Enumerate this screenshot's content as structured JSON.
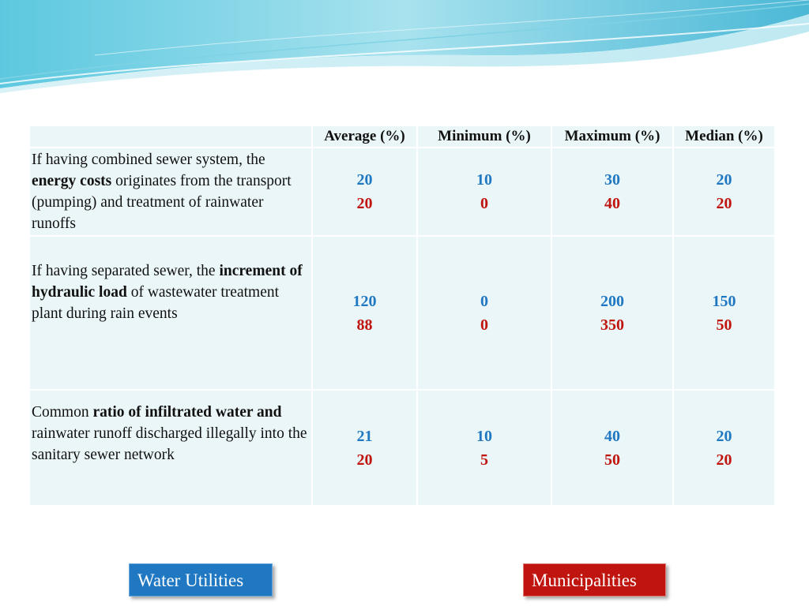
{
  "table": {
    "headers": [
      "",
      "Average (%)",
      "Minimum (%)",
      "Maximum (%)",
      "Median (%)"
    ],
    "rows": [
      {
        "label_parts": [
          {
            "text": "If having combined sewer system, the ",
            "bold": false
          },
          {
            "text": "energy costs",
            "bold": true
          },
          {
            "text": " originates from the transport (pumping) and treatment of rainwater runoffs",
            "bold": false
          }
        ],
        "water_utilities": [
          "20",
          "10",
          "30",
          "20"
        ],
        "municipalities": [
          "20",
          "0",
          "40",
          "20"
        ]
      },
      {
        "label_parts": [
          {
            "text": "If having separated sewer, the ",
            "bold": false
          },
          {
            "text": "increment of hydraulic load",
            "bold": true
          },
          {
            "text": " of wastewater treatment plant during rain events",
            "bold": false
          }
        ],
        "water_utilities": [
          "120",
          "0",
          "200",
          "150"
        ],
        "municipalities": [
          "88",
          "0",
          "350",
          "50"
        ]
      },
      {
        "label_parts": [
          {
            "text": "Common ",
            "bold": false
          },
          {
            "text": "ratio of infiltrated water and",
            "bold": true
          },
          {
            "text": " rainwater runoff discharged illegally into the sanitary sewer network",
            "bold": false
          }
        ],
        "water_utilities": [
          "21",
          "10",
          "40",
          "20"
        ],
        "municipalities": [
          "20",
          "5",
          "50",
          "20"
        ]
      }
    ]
  },
  "legend": {
    "water_utilities": "Water Utilities",
    "municipalities": "Municipalities"
  },
  "colors": {
    "water_utilities": "#1f78c1",
    "municipalities": "#c0140e",
    "cell_background": "#eaf6f7"
  }
}
